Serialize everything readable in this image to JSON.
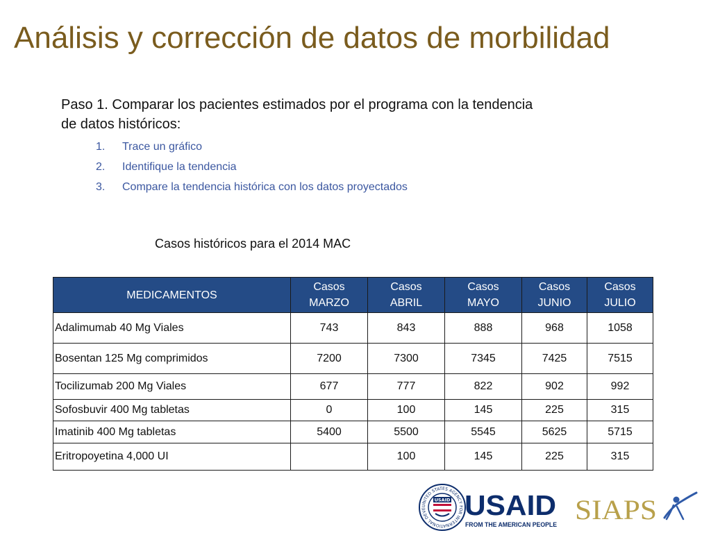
{
  "slide": {
    "title": "Análisis y corrección de datos de morbilidad",
    "intro": "Paso 1. Comparar los pacientes estimados por el programa con la tendencia de datos históricos:",
    "steps": [
      {
        "num": "1.",
        "text": "Trace un gráfico"
      },
      {
        "num": "2.",
        "text": "Identifique la tendencia"
      },
      {
        "num": "3.",
        "text": "Compare la tendencia histórica con los datos proyectados"
      }
    ],
    "table_caption": "Casos históricos para el 2014 MAC"
  },
  "table": {
    "headers": [
      {
        "line1": "MEDICAMENTOS",
        "line2": ""
      },
      {
        "line1": "Casos",
        "line2": "MARZO"
      },
      {
        "line1": "Casos",
        "line2": "ABRIL"
      },
      {
        "line1": "Casos",
        "line2": "MAYO"
      },
      {
        "line1": "Casos",
        "line2": "JUNIO"
      },
      {
        "line1": "Casos",
        "line2": "JULIO"
      }
    ],
    "rows": [
      {
        "drug": "Adalimumab 40 Mg  Viales",
        "values": [
          "743",
          "843",
          "888",
          "968",
          "1058"
        ]
      },
      {
        "drug": "Bosentan 125 Mg comprimidos",
        "values": [
          "7200",
          "7300",
          "7345",
          "7425",
          "7515"
        ]
      },
      {
        "drug": "Tocilizumab 200 Mg Viales",
        "values": [
          "677",
          "777",
          "822",
          "902",
          "992"
        ]
      },
      {
        "drug": "Sofosbuvir 400 Mg tabletas",
        "values": [
          "0",
          "100",
          "145",
          "225",
          "315"
        ]
      },
      {
        "drug": "Imatinib 400 Mg tabletas",
        "values": [
          "5400",
          "5500",
          "5545",
          "5625",
          "5715"
        ]
      },
      {
        "drug": "Eritropoyetina 4,000 UI",
        "values": [
          "",
          "100",
          "145",
          "225",
          "315"
        ]
      }
    ]
  },
  "logos": {
    "seal_text": "UNITED STATES AGENCY FOR INTERNATIONAL DEVELOPMENT",
    "seal_label": "USAID",
    "usaid_wordmark": "USAID",
    "usaid_tagline": "FROM THE AMERICAN PEOPLE",
    "siaps_wordmark": "SIAPS"
  },
  "colors": {
    "title": "#7a5c1e",
    "steps": "#3b57a0",
    "header_fill": "#244b86",
    "usaid_blue": "#0d2d6c",
    "usaid_red": "#c2113a",
    "siaps_gold": "#b8a04a"
  }
}
